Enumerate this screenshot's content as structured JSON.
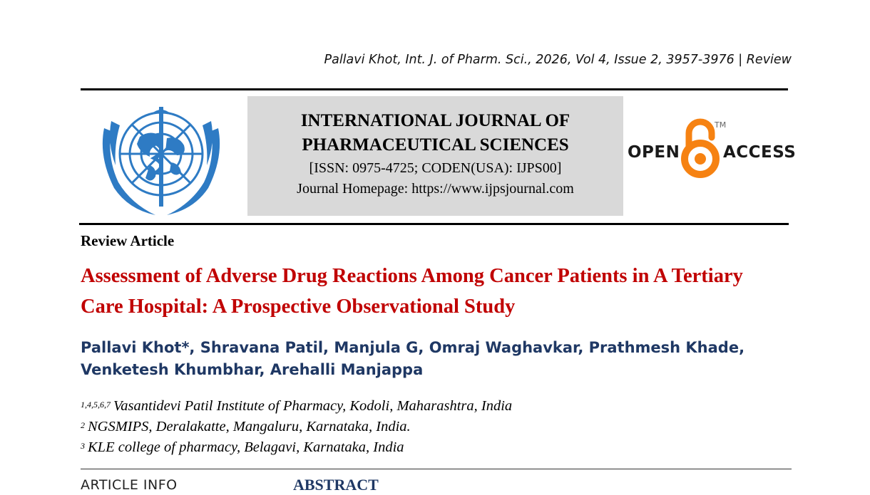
{
  "header": {
    "citation": "Pallavi Khot, Int. J. of Pharm. Sci., 2026, Vol 4, Issue 2, 3957-3976 | Review"
  },
  "journal": {
    "name_line1": "INTERNATIONAL JOURNAL OF",
    "name_line2": "PHARMACEUTICAL SCIENCES",
    "issn": "[ISSN: 0975-4725; CODEN(USA): IJPS00]",
    "homepage": "Journal Homepage: https://www.ijpsjournal.com"
  },
  "open_access": {
    "open": "OPEN",
    "access": "ACCESS",
    "tm": "TM",
    "icon": "open-access-lock-icon",
    "color": "#f68212"
  },
  "article": {
    "type": "Review Article",
    "title": "Assessment of Adverse Drug Reactions Among Cancer Patients in A Tertiary Care Hospital: A Prospective Observational Study",
    "authors_line1": "Pallavi Khot*, Shravana Patil, Manjula G, Omraj Waghavkar, Prathmesh Khade,",
    "authors_line2": "Venketesh Khumbhar, Arehalli Manjappa",
    "title_color": "#c00000",
    "author_color": "#1f3864"
  },
  "affiliations": [
    {
      "sup": "1,4,5,6,7",
      "text": "Vasantidevi Patil Institute of Pharmacy, Kodoli, Maharashtra, India"
    },
    {
      "sup": "2",
      "text": "NGSMIPS, Deralakatte, Mangaluru, Karnataka, India."
    },
    {
      "sup": "3",
      "text": "KLE college of pharmacy, Belagavi, Karnataka, India"
    }
  ],
  "sections": {
    "article_info": "ARTICLE INFO",
    "abstract": "ABSTRACT"
  }
}
